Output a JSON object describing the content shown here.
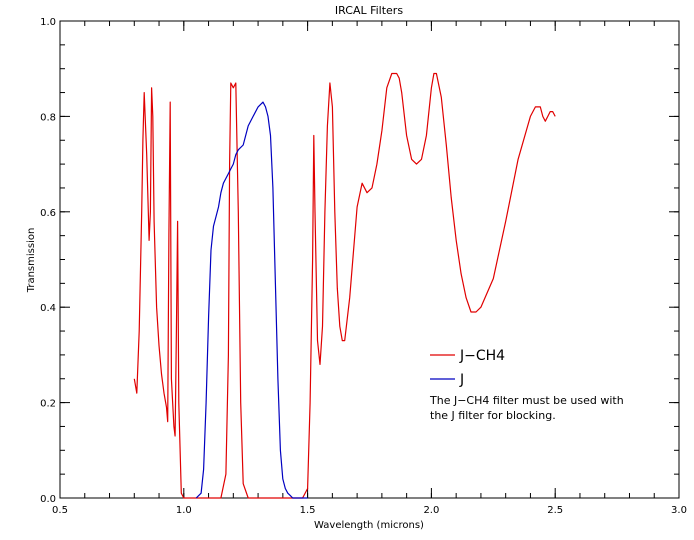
{
  "chart_data": {
    "type": "line",
    "title": "IRCAL Filters",
    "xlabel": "Wavelength (microns)",
    "ylabel": "Transmission",
    "xlim": [
      0.5,
      3.0
    ],
    "ylim": [
      0.0,
      1.0
    ],
    "xticks": [
      0.5,
      1.0,
      1.5,
      2.0,
      2.5,
      3.0
    ],
    "xtick_labels": [
      "0.5",
      "1.0",
      "1.5",
      "2.0",
      "2.5",
      "3.0"
    ],
    "yticks": [
      0.0,
      0.2,
      0.4,
      0.6,
      0.8,
      1.0
    ],
    "ytick_labels": [
      "0.0",
      "0.2",
      "0.4",
      "0.6",
      "0.8",
      "1.0"
    ],
    "grid": false,
    "legend_position": "right",
    "annotation_lines": [
      "The J−CH4 filter must be used with",
      "the J filter for blocking."
    ],
    "series": [
      {
        "name": "J−CH4",
        "color": "#e00000",
        "x": [
          0.8,
          0.81,
          0.82,
          0.83,
          0.835,
          0.84,
          0.85,
          0.86,
          0.865,
          0.87,
          0.875,
          0.88,
          0.89,
          0.9,
          0.91,
          0.92,
          0.93,
          0.935,
          0.94,
          0.945,
          0.95,
          0.96,
          0.965,
          0.97,
          0.975,
          0.98,
          0.99,
          1.0,
          1.05,
          1.1,
          1.15,
          1.17,
          1.18,
          1.185,
          1.19,
          1.2,
          1.21,
          1.22,
          1.23,
          1.24,
          1.26,
          1.3,
          1.35,
          1.4,
          1.45,
          1.48,
          1.5,
          1.51,
          1.52,
          1.525,
          1.53,
          1.54,
          1.55,
          1.56,
          1.57,
          1.58,
          1.59,
          1.6,
          1.61,
          1.62,
          1.63,
          1.64,
          1.65,
          1.67,
          1.7,
          1.72,
          1.74,
          1.76,
          1.78,
          1.8,
          1.82,
          1.84,
          1.86,
          1.87,
          1.88,
          1.9,
          1.92,
          1.94,
          1.96,
          1.98,
          2.0,
          2.01,
          2.02,
          2.04,
          2.06,
          2.08,
          2.1,
          2.12,
          2.14,
          2.16,
          2.18,
          2.2,
          2.25,
          2.3,
          2.35,
          2.4,
          2.42,
          2.44,
          2.45,
          2.46,
          2.47,
          2.48,
          2.49,
          2.5
        ],
        "y": [
          0.25,
          0.22,
          0.35,
          0.6,
          0.75,
          0.85,
          0.72,
          0.54,
          0.6,
          0.86,
          0.8,
          0.58,
          0.4,
          0.32,
          0.26,
          0.22,
          0.19,
          0.16,
          0.55,
          0.83,
          0.25,
          0.15,
          0.13,
          0.35,
          0.58,
          0.2,
          0.01,
          0.0,
          0.0,
          0.0,
          0.0,
          0.05,
          0.3,
          0.7,
          0.87,
          0.86,
          0.87,
          0.6,
          0.2,
          0.03,
          0.0,
          0.0,
          0.0,
          0.0,
          0.0,
          0.0,
          0.02,
          0.2,
          0.5,
          0.76,
          0.6,
          0.33,
          0.28,
          0.36,
          0.6,
          0.78,
          0.87,
          0.82,
          0.6,
          0.44,
          0.36,
          0.33,
          0.33,
          0.42,
          0.61,
          0.66,
          0.64,
          0.65,
          0.7,
          0.77,
          0.86,
          0.89,
          0.89,
          0.88,
          0.85,
          0.76,
          0.71,
          0.7,
          0.71,
          0.76,
          0.86,
          0.89,
          0.89,
          0.84,
          0.74,
          0.63,
          0.54,
          0.47,
          0.42,
          0.39,
          0.39,
          0.4,
          0.46,
          0.58,
          0.71,
          0.8,
          0.82,
          0.82,
          0.8,
          0.79,
          0.8,
          0.81,
          0.81,
          0.8
        ]
      },
      {
        "name": "J",
        "color": "#0000c0",
        "x": [
          1.05,
          1.07,
          1.08,
          1.09,
          1.1,
          1.11,
          1.12,
          1.13,
          1.14,
          1.15,
          1.16,
          1.17,
          1.18,
          1.19,
          1.2,
          1.21,
          1.22,
          1.24,
          1.26,
          1.28,
          1.3,
          1.32,
          1.33,
          1.34,
          1.35,
          1.36,
          1.37,
          1.38,
          1.39,
          1.4,
          1.41,
          1.42,
          1.43,
          1.44,
          1.45,
          1.47,
          1.5
        ],
        "y": [
          0.0,
          0.01,
          0.06,
          0.2,
          0.38,
          0.52,
          0.57,
          0.59,
          0.61,
          0.64,
          0.66,
          0.67,
          0.68,
          0.69,
          0.7,
          0.72,
          0.73,
          0.74,
          0.78,
          0.8,
          0.82,
          0.83,
          0.82,
          0.8,
          0.76,
          0.65,
          0.45,
          0.25,
          0.1,
          0.04,
          0.02,
          0.01,
          0.005,
          0.0,
          0.0,
          0.0,
          0.0
        ]
      }
    ]
  }
}
